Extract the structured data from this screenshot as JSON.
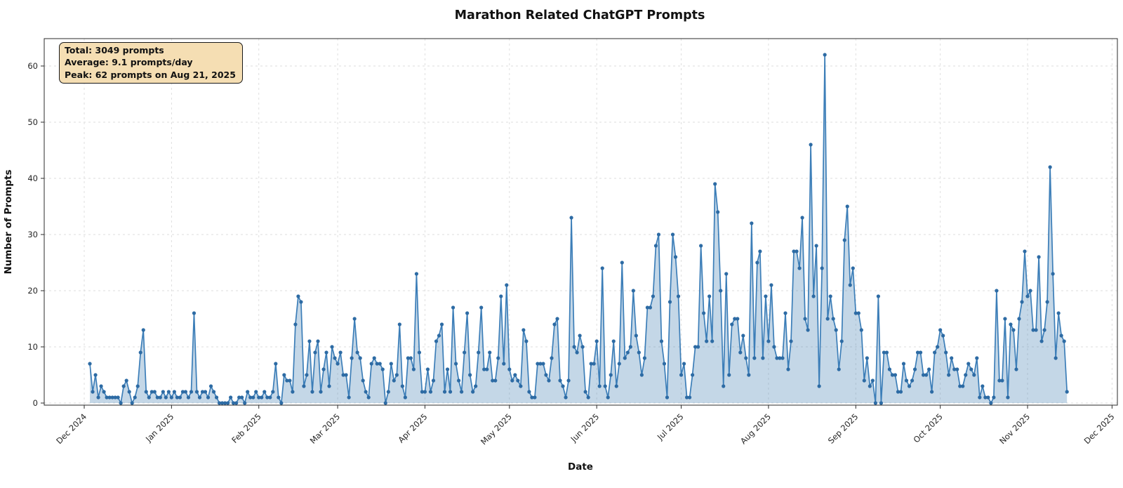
{
  "chart_data": {
    "type": "area",
    "title": "Marathon Related ChatGPT Prompts",
    "xlabel": "Date",
    "ylabel": "Number of Prompts",
    "grid": true,
    "grid_style": "dashed",
    "legend": "none",
    "ylim": [
      -3,
      65
    ],
    "y_ticks": [
      0,
      10,
      20,
      30,
      40,
      50,
      60
    ],
    "x_tick_labels": [
      "Dec 2024",
      "Jan 2025",
      "Feb 2025",
      "Mar 2025",
      "Apr 2025",
      "May 2025",
      "Jun 2025",
      "Jul 2025",
      "Aug 2025",
      "Sep 2025",
      "Oct 2025",
      "Nov 2025",
      "Dec 2025"
    ],
    "start_date": "2024-12-03",
    "line_color": "#3c7eb8",
    "marker_color": "#2d6ba4",
    "fill_color": "rgba(70,130,180,0.32)",
    "grid_color": "#dcdcdc",
    "annotation": {
      "total": "Total: 3049 prompts",
      "average": "Average: 9.1 prompts/day",
      "peak": "Peak: 62 prompts on Aug 21, 2025",
      "background": "#f5deb3"
    },
    "peak": {
      "value": 62,
      "date": "2025-08-21"
    },
    "values": [
      7,
      2,
      5,
      1,
      3,
      2,
      1,
      1,
      1,
      1,
      1,
      0,
      3,
      4,
      2,
      0,
      1,
      3,
      9,
      13,
      2,
      1,
      2,
      2,
      1,
      1,
      2,
      1,
      2,
      1,
      2,
      1,
      1,
      2,
      2,
      1,
      2,
      16,
      2,
      1,
      2,
      2,
      1,
      3,
      2,
      1,
      0,
      0,
      0,
      0,
      1,
      0,
      0,
      1,
      1,
      0,
      2,
      1,
      1,
      2,
      1,
      1,
      2,
      1,
      1,
      2,
      7,
      1,
      0,
      5,
      4,
      4,
      2,
      14,
      19,
      18,
      3,
      5,
      11,
      2,
      9,
      11,
      2,
      6,
      9,
      3,
      10,
      8,
      7,
      9,
      5,
      5,
      1,
      8,
      15,
      9,
      8,
      4,
      2,
      1,
      7,
      8,
      7,
      7,
      6,
      0,
      2,
      7,
      4,
      5,
      14,
      3,
      1,
      8,
      8,
      6,
      23,
      9,
      2,
      2,
      6,
      2,
      4,
      11,
      12,
      14,
      2,
      6,
      2,
      17,
      7,
      4,
      2,
      9,
      16,
      5,
      2,
      3,
      9,
      17,
      6,
      6,
      9,
      4,
      4,
      8,
      19,
      7,
      21,
      6,
      4,
      5,
      4,
      3,
      13,
      11,
      2,
      1,
      1,
      7,
      7,
      7,
      5,
      4,
      8,
      14,
      15,
      4,
      3,
      1,
      4,
      33,
      10,
      9,
      12,
      10,
      2,
      1,
      7,
      7,
      11,
      3,
      24,
      3,
      1,
      5,
      11,
      3,
      7,
      25,
      8,
      9,
      10,
      20,
      12,
      9,
      5,
      8,
      17,
      17,
      19,
      28,
      30,
      11,
      7,
      1,
      18,
      30,
      26,
      19,
      5,
      7,
      1,
      1,
      5,
      10,
      10,
      28,
      16,
      11,
      19,
      11,
      39,
      34,
      20,
      3,
      23,
      5,
      14,
      15,
      15,
      9,
      12,
      8,
      5,
      32,
      8,
      25,
      27,
      8,
      19,
      11,
      21,
      10,
      8,
      8,
      8,
      16,
      6,
      11,
      27,
      27,
      24,
      33,
      15,
      13,
      46,
      19,
      28,
      3,
      24,
      62,
      15,
      19,
      15,
      13,
      6,
      11,
      29,
      35,
      21,
      24,
      16,
      16,
      13,
      4,
      8,
      3,
      4,
      0,
      19,
      0,
      9,
      9,
      6,
      5,
      5,
      2,
      2,
      7,
      4,
      3,
      4,
      6,
      9,
      9,
      5,
      5,
      6,
      2,
      9,
      10,
      13,
      12,
      9,
      5,
      8,
      6,
      6,
      3,
      3,
      5,
      7,
      6,
      5,
      8,
      1,
      3,
      1,
      1,
      0,
      1,
      20,
      4,
      4,
      15,
      1,
      14,
      13,
      6,
      15,
      18,
      27,
      19,
      20,
      13,
      13,
      26,
      11,
      13,
      18,
      42,
      23,
      8,
      16,
      12,
      11,
      2
    ]
  }
}
